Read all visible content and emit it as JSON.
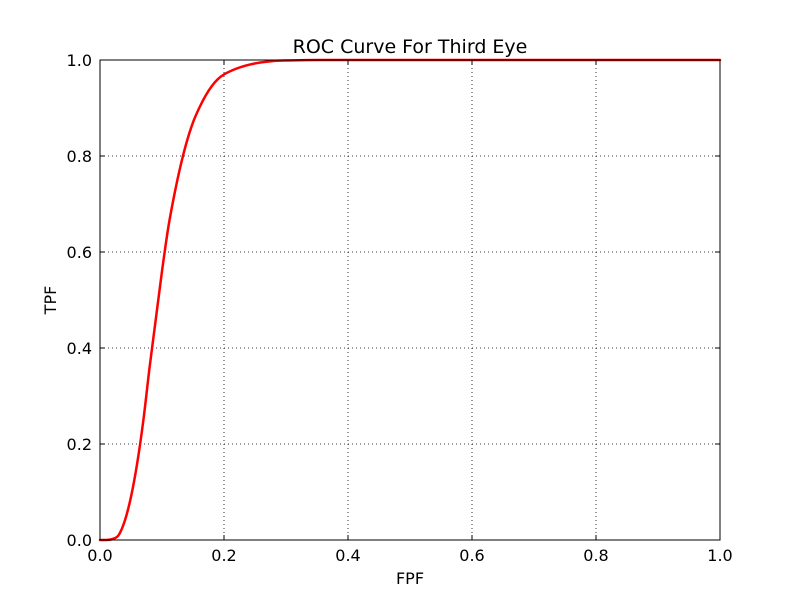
{
  "chart_data": {
    "type": "line",
    "title": "ROC Curve For Third Eye",
    "xlabel": "FPF",
    "ylabel": "TPF",
    "xlim": [
      0.0,
      1.0
    ],
    "ylim": [
      0.0,
      1.0
    ],
    "xticks": [
      "0.0",
      "0.2",
      "0.4",
      "0.6",
      "0.8",
      "1.0"
    ],
    "yticks": [
      "0.0",
      "0.2",
      "0.4",
      "0.6",
      "0.8",
      "1.0"
    ],
    "grid": true,
    "grid_style": "dotted",
    "series": [
      {
        "color": "#ff0000",
        "x": [
          0.0,
          0.01,
          0.02,
          0.03,
          0.04,
          0.05,
          0.06,
          0.07,
          0.08,
          0.09,
          0.1,
          0.11,
          0.12,
          0.13,
          0.14,
          0.15,
          0.16,
          0.17,
          0.18,
          0.19,
          0.2,
          0.22,
          0.24,
          0.26,
          0.28,
          0.3,
          0.35,
          0.4,
          0.5,
          0.6,
          0.7,
          0.8,
          0.9,
          1.0
        ],
        "y": [
          0.0,
          0.0,
          0.002,
          0.01,
          0.04,
          0.09,
          0.16,
          0.25,
          0.36,
          0.46,
          0.56,
          0.65,
          0.72,
          0.78,
          0.83,
          0.87,
          0.9,
          0.925,
          0.945,
          0.96,
          0.97,
          0.982,
          0.99,
          0.995,
          0.998,
          0.999,
          1.0,
          1.0,
          1.0,
          1.0,
          1.0,
          1.0,
          1.0,
          1.0
        ]
      }
    ]
  }
}
